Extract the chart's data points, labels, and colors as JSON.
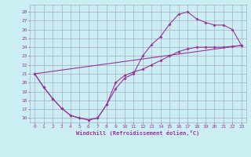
{
  "xlabel": "Windchill (Refroidissement éolien,°C)",
  "bg_color": "#cbeef3",
  "grid_color": "#aaaacc",
  "line_color": "#993399",
  "xlim": [
    -0.5,
    23.5
  ],
  "ylim": [
    15.5,
    28.8
  ],
  "yticks": [
    16,
    17,
    18,
    19,
    20,
    21,
    22,
    23,
    24,
    25,
    26,
    27,
    28
  ],
  "xticks": [
    0,
    1,
    2,
    3,
    4,
    5,
    6,
    7,
    8,
    9,
    10,
    11,
    12,
    13,
    14,
    15,
    16,
    17,
    18,
    19,
    20,
    21,
    22,
    23
  ],
  "line1_x": [
    0,
    1,
    2,
    3,
    4,
    5,
    6,
    7,
    8,
    9,
    10,
    11,
    12,
    13,
    14,
    15,
    16,
    17,
    18,
    19,
    20,
    21,
    22,
    23
  ],
  "line1_y": [
    21.0,
    19.5,
    18.2,
    17.1,
    16.3,
    16.0,
    15.8,
    16.0,
    17.5,
    19.3,
    20.5,
    21.0,
    23.0,
    24.3,
    25.2,
    26.6,
    27.7,
    28.0,
    27.2,
    26.8,
    26.5,
    26.5,
    26.0,
    24.2
  ],
  "line2_x": [
    0,
    1,
    2,
    3,
    4,
    5,
    6,
    7,
    8,
    9,
    10,
    11,
    12,
    13,
    14,
    15,
    16,
    17,
    18,
    19,
    20,
    21,
    22,
    23
  ],
  "line2_y": [
    21.0,
    19.5,
    18.2,
    17.1,
    16.3,
    16.0,
    15.8,
    16.0,
    17.5,
    20.0,
    20.8,
    21.2,
    21.5,
    22.0,
    22.5,
    23.0,
    23.5,
    23.8,
    24.0,
    24.0,
    24.0,
    24.0,
    24.1,
    24.2
  ],
  "line3_x": [
    0,
    23
  ],
  "line3_y": [
    21.0,
    24.2
  ]
}
